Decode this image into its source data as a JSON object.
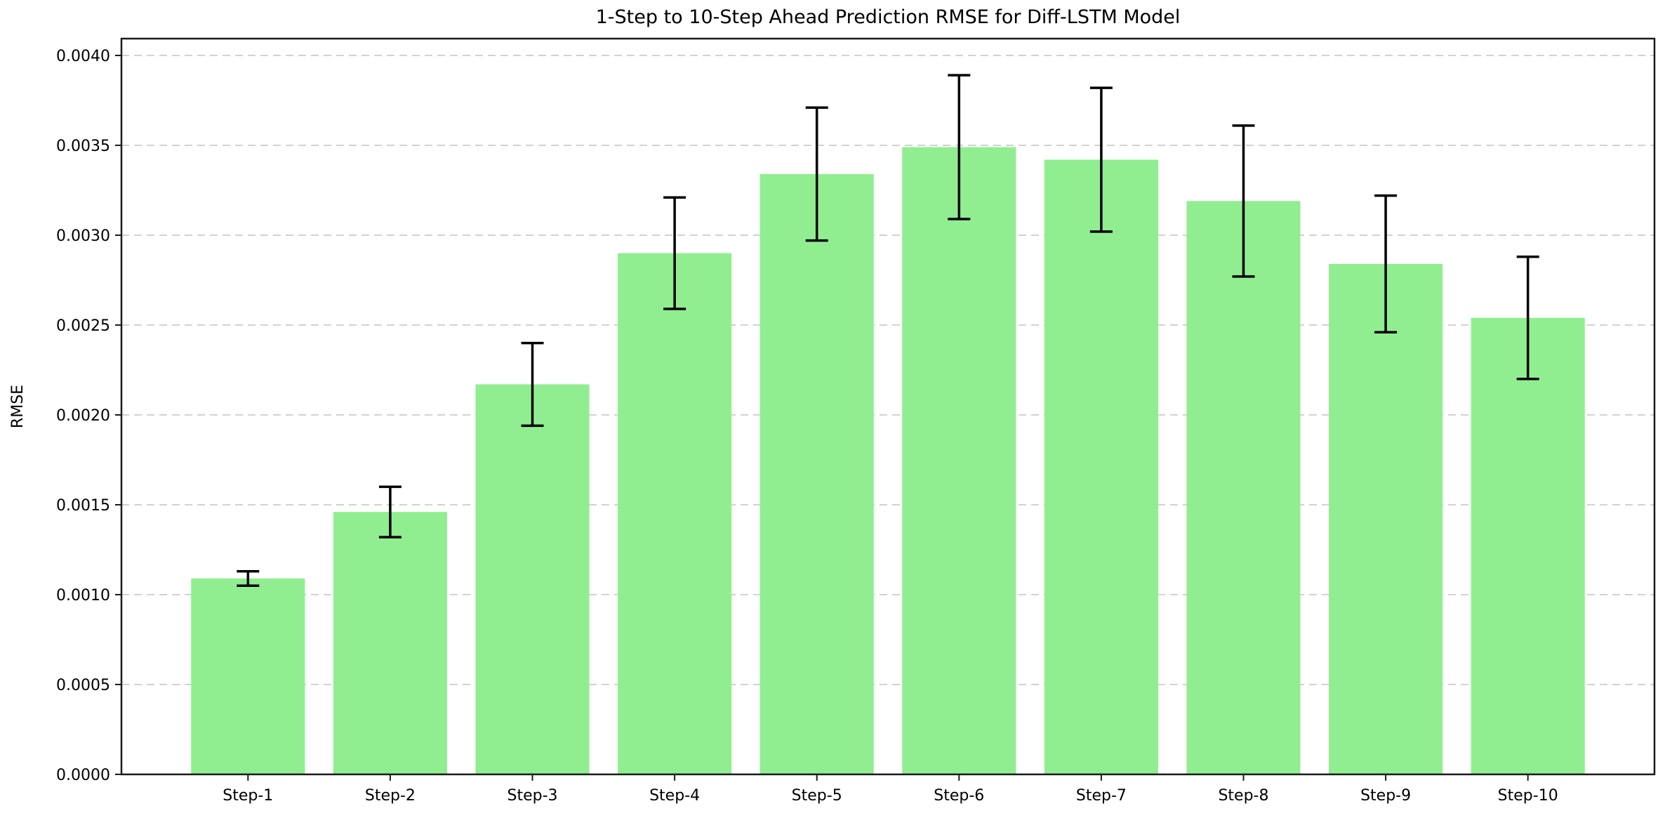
{
  "chart_data": {
    "type": "bar",
    "title": "1-Step to 10-Step Ahead Prediction RMSE for Diff-LSTM Model",
    "xlabel": "",
    "ylabel": "RMSE",
    "categories": [
      "Step-1",
      "Step-2",
      "Step-3",
      "Step-4",
      "Step-5",
      "Step-6",
      "Step-7",
      "Step-8",
      "Step-9",
      "Step-10"
    ],
    "series": [
      {
        "name": "RMSE",
        "values": [
          0.00109,
          0.00146,
          0.00217,
          0.0029,
          0.00334,
          0.00349,
          0.00342,
          0.00319,
          0.00284,
          0.00254
        ],
        "error_bars": [
          4e-05,
          0.00014,
          0.00023,
          0.00031,
          0.00037,
          0.0004,
          0.0004,
          0.00042,
          0.00038,
          0.00034
        ]
      }
    ],
    "y_ticks": {
      "values": [
        0.0,
        0.0005,
        0.001,
        0.0015,
        0.002,
        0.0025,
        0.003,
        0.0035,
        0.004
      ],
      "labels": [
        "0.0000",
        "0.0005",
        "0.0010",
        "0.0015",
        "0.0020",
        "0.0025",
        "0.0030",
        "0.0035",
        "0.0040"
      ]
    },
    "ylim": [
      0,
      0.0041
    ],
    "legend": "none",
    "grid": "horizontal-dashed",
    "colors": {
      "bar_fill": "#90EE90",
      "error_bar": "#000000",
      "gridline": "#c4c4c4",
      "spine": "#1a1a1a",
      "background": "#ffffff"
    }
  }
}
